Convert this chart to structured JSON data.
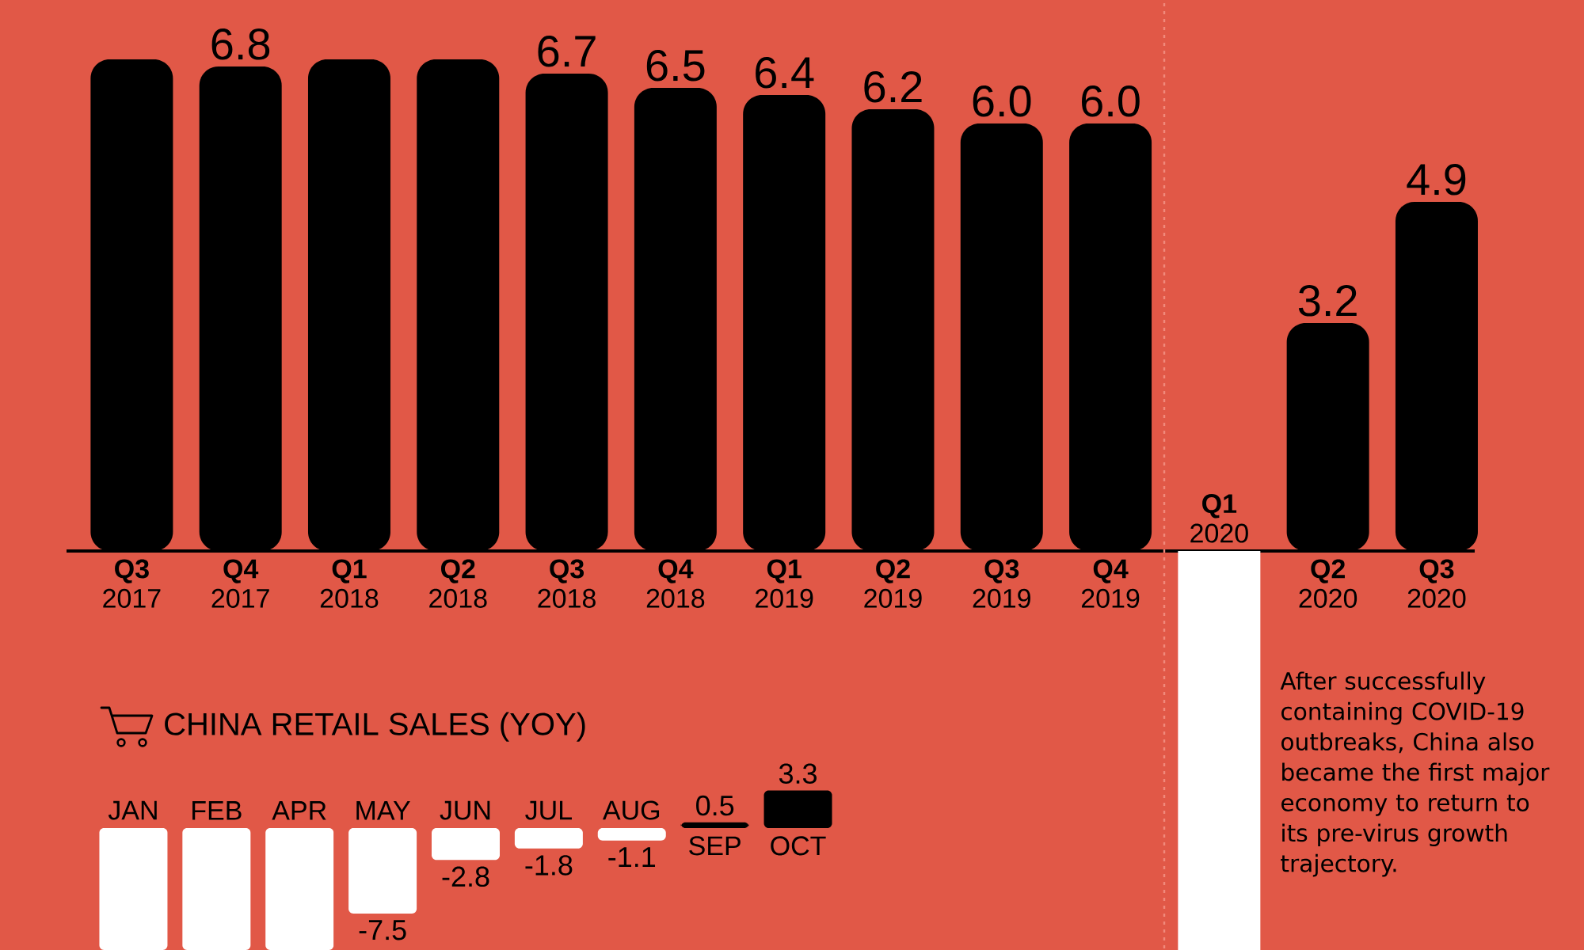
{
  "chart_data": [
    {
      "type": "bar",
      "categories": [
        "**Q3** 2017",
        "**Q4** 2017",
        "**Q1** 2018",
        "**Q2** 2018",
        "**Q3** 2018",
        "**Q4** 2018",
        "**Q1** 2019",
        "**Q2** 2019",
        "**Q3** 2019",
        "**Q4** 2019",
        "**Q1** 2020",
        "**Q2** 2020",
        "**Q3** 2020"
      ],
      "values": [
        6.9,
        6.8,
        6.9,
        6.9,
        6.7,
        6.5,
        6.4,
        6.2,
        6.0,
        6.0,
        -5.6,
        3.2,
        4.9
      ],
      "colors": [
        "#000000",
        "#000000",
        "#000000",
        "#000000",
        "#000000",
        "#000000",
        "#000000",
        "#000000",
        "#000000",
        "#000000",
        "#ffffff",
        "#000000",
        "#000000"
      ],
      "value_labels": [
        null,
        "6.8",
        null,
        null,
        "6.7",
        "6.5",
        "6.4",
        "6.2",
        "6.0",
        "6.0",
        null,
        "3.2",
        "4.9"
      ],
      "tick_labels": "x",
      "annotations": [
        "After successfully containing COVID-19 outbreaks, China also became the first major economy to return to its pre-virus growth trajectory."
      ]
    },
    {
      "type": "bar",
      "title": "CHINA RETAIL SALES (YOY)",
      "categories": [
        "JAN",
        "FEB",
        "APR",
        "MAY",
        "JUN",
        "JUL",
        "AUG",
        "SEP",
        "OCT"
      ],
      "values": [
        -10.7,
        -10.7,
        -10.7,
        -7.5,
        -2.8,
        -1.8,
        -1.1,
        0.5,
        3.3
      ],
      "colors": [
        "#ffffff",
        "#ffffff",
        "#ffffff",
        "#ffffff",
        "#ffffff",
        "#ffffff",
        "#ffffff",
        "#000000",
        "#000000"
      ],
      "value_labels": [
        null,
        null,
        null,
        "-7.5",
        "-2.8",
        "-1.8",
        "-1.1",
        "0.5",
        "3.3"
      ],
      "tick_labels": "x"
    }
  ]
}
